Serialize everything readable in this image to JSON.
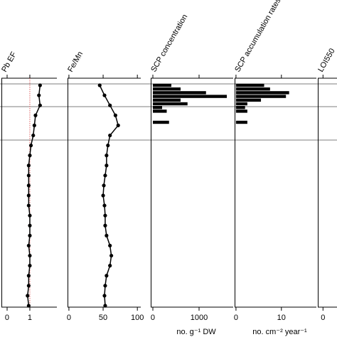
{
  "chart_data": [
    {
      "type": "line",
      "title": "Pb EF",
      "color": "#000000",
      "categories": [
        null,
        null,
        null,
        null,
        null,
        null,
        null,
        null,
        null,
        null,
        null,
        null,
        null,
        null,
        null,
        null,
        null,
        null,
        null,
        null,
        null,
        null,
        null
      ],
      "values": [
        1.45,
        1.4,
        1.45,
        1.25,
        1.2,
        1.15,
        1.05,
        1.0,
        0.95,
        0.95,
        0.95,
        0.95,
        0.95,
        1.0,
        1.0,
        1.0,
        0.95,
        1.0,
        1.0,
        0.95,
        0.95,
        0.9,
        0.95
      ],
      "xlim": [
        -0.25,
        2.19
      ],
      "xticks": [
        0,
        1
      ],
      "reference_line": 1,
      "reference_color": "#e06060"
    },
    {
      "type": "line",
      "title": "Fe/Mn",
      "color": "#000000",
      "categories": [
        null,
        null,
        null,
        null,
        null,
        null,
        null,
        null,
        null,
        null,
        null,
        null,
        null,
        null,
        null,
        null,
        null,
        null,
        null,
        null,
        null,
        null,
        null
      ],
      "values": [
        45,
        52,
        60,
        68,
        72,
        60,
        57,
        55,
        55,
        53,
        51,
        50,
        52,
        53,
        53,
        55,
        60,
        62,
        60,
        55,
        53,
        52,
        53
      ],
      "xlim": [
        -2,
        105
      ],
      "xticks": [
        0,
        50,
        100
      ]
    },
    {
      "type": "barh",
      "title": "SCP concentration",
      "color": "#000000",
      "xlabel": "no. g⁻¹ DW",
      "categories": [
        null,
        null,
        null,
        null,
        null,
        null,
        null,
        null,
        null,
        null,
        null
      ],
      "values": [
        400,
        600,
        1150,
        1600,
        600,
        750,
        200,
        300,
        0,
        0,
        350
      ],
      "xlim": [
        -46,
        1738
      ],
      "xticks": [
        0,
        1000
      ]
    },
    {
      "type": "barh",
      "title": "SCP accumulation rates",
      "color": "#000000",
      "xlabel": "no. cm⁻² year⁻¹",
      "categories": [
        null,
        null,
        null,
        null,
        null,
        null,
        null,
        null,
        null,
        null,
        null
      ],
      "values": [
        6.2,
        7.5,
        11.7,
        11,
        5.5,
        2.5,
        2,
        2.5,
        0,
        0,
        2.5
      ],
      "xlim": [
        -0.3,
        17.7
      ],
      "xticks": [
        0,
        10
      ]
    },
    {
      "type": "line",
      "title": "LOI550",
      "color": "#000000",
      "xlim": [
        -1,
        9
      ],
      "xticks": [
        0
      ]
    }
  ]
}
